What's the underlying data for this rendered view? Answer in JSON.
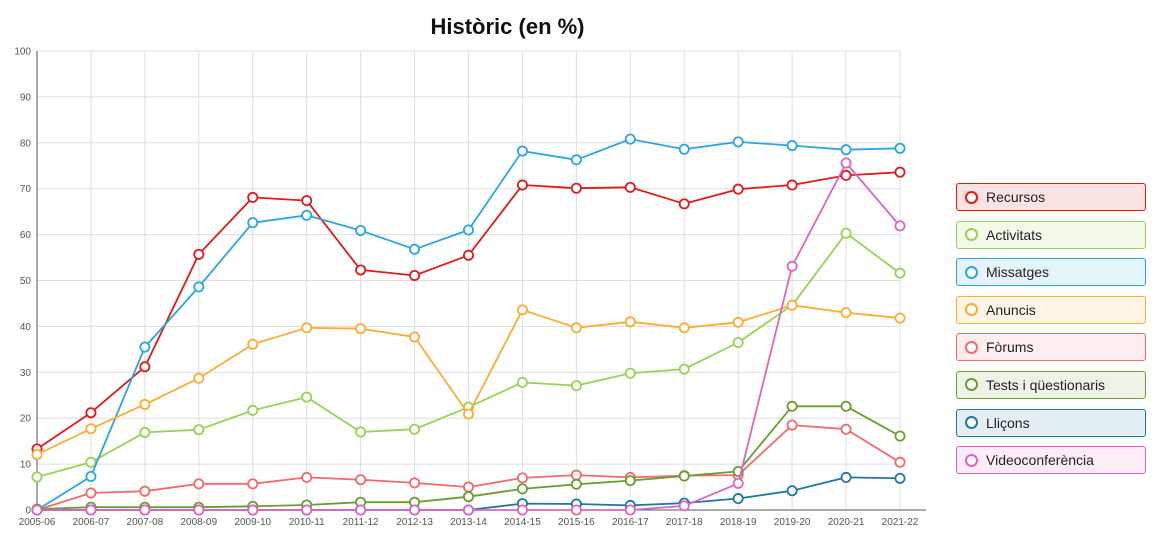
{
  "chart_data": {
    "type": "line",
    "title": "Històric (en %)",
    "xlabel": "",
    "ylabel": "",
    "ylim": [
      0,
      100
    ],
    "yticks": [
      "0",
      "10",
      "20",
      "30",
      "40",
      "50",
      "60",
      "70",
      "80",
      "90",
      "100"
    ],
    "grid": true,
    "legend_position": "right",
    "categories": [
      "2005-06",
      "2006-07",
      "2007-08",
      "2008-09",
      "2009-10",
      "2010-11",
      "2011-12",
      "2012-13",
      "2013-14",
      "2014-15",
      "2015-16",
      "2016-17",
      "2017-18",
      "2018-19",
      "2019-20",
      "2020-21",
      "2021-22"
    ],
    "series": [
      {
        "name": "Recursos",
        "color": "#e31a1c",
        "values": [
          13.3,
          21.2,
          31.2,
          55.7,
          68.1,
          67.4,
          52.3,
          51.1,
          55.5,
          70.8,
          70.1,
          70.3,
          66.7,
          69.9,
          70.8,
          72.9,
          73.6
        ]
      },
      {
        "name": "Activitats",
        "color": "#98d252",
        "values": [
          7.2,
          10.4,
          16.9,
          17.5,
          21.7,
          24.6,
          17.0,
          17.6,
          22.4,
          27.8,
          27.1,
          29.8,
          30.7,
          36.5,
          44.6,
          60.3,
          51.6
        ]
      },
      {
        "name": "Missatges",
        "color": "#29a8e0",
        "values": [
          0,
          7.3,
          35.5,
          48.6,
          62.6,
          64.2,
          60.9,
          56.8,
          61.0,
          78.2,
          76.3,
          80.8,
          78.6,
          80.2,
          79.4,
          78.5,
          78.8
        ]
      },
      {
        "name": "Anuncis",
        "color": "#fdad32",
        "values": [
          12.1,
          17.7,
          23.0,
          28.7,
          36.1,
          39.7,
          39.5,
          37.7,
          20.9,
          43.6,
          39.7,
          41.0,
          39.7,
          40.9,
          44.6,
          43.0,
          41.8
        ]
      },
      {
        "name": "Fòrums",
        "color": "#f26b6b",
        "values": [
          0,
          3.7,
          4.1,
          5.7,
          5.7,
          7.1,
          6.6,
          5.9,
          5.0,
          7.0,
          7.6,
          7.1,
          7.5,
          7.6,
          18.5,
          17.6,
          10.4
        ]
      },
      {
        "name": "Tests i qüestionaris",
        "color": "#6b9e2f",
        "values": [
          0.2,
          0.6,
          0.6,
          0.6,
          0.8,
          1.1,
          1.7,
          1.7,
          2.9,
          4.6,
          5.6,
          6.4,
          7.4,
          8.4,
          22.6,
          22.6,
          16.1
        ]
      },
      {
        "name": "Lliçons",
        "color": "#1f78a4",
        "values": [
          0,
          0,
          0,
          0,
          0,
          0,
          0,
          0,
          0,
          1.4,
          1.3,
          1.0,
          1.5,
          2.5,
          4.2,
          7.1,
          6.9
        ]
      },
      {
        "name": "Videoconferència",
        "color": "#de63c3",
        "values": [
          0,
          0,
          0,
          0,
          0,
          0,
          0,
          0,
          0,
          0,
          0,
          0,
          0.9,
          5.8,
          53.1,
          75.6,
          61.9
        ]
      }
    ]
  }
}
